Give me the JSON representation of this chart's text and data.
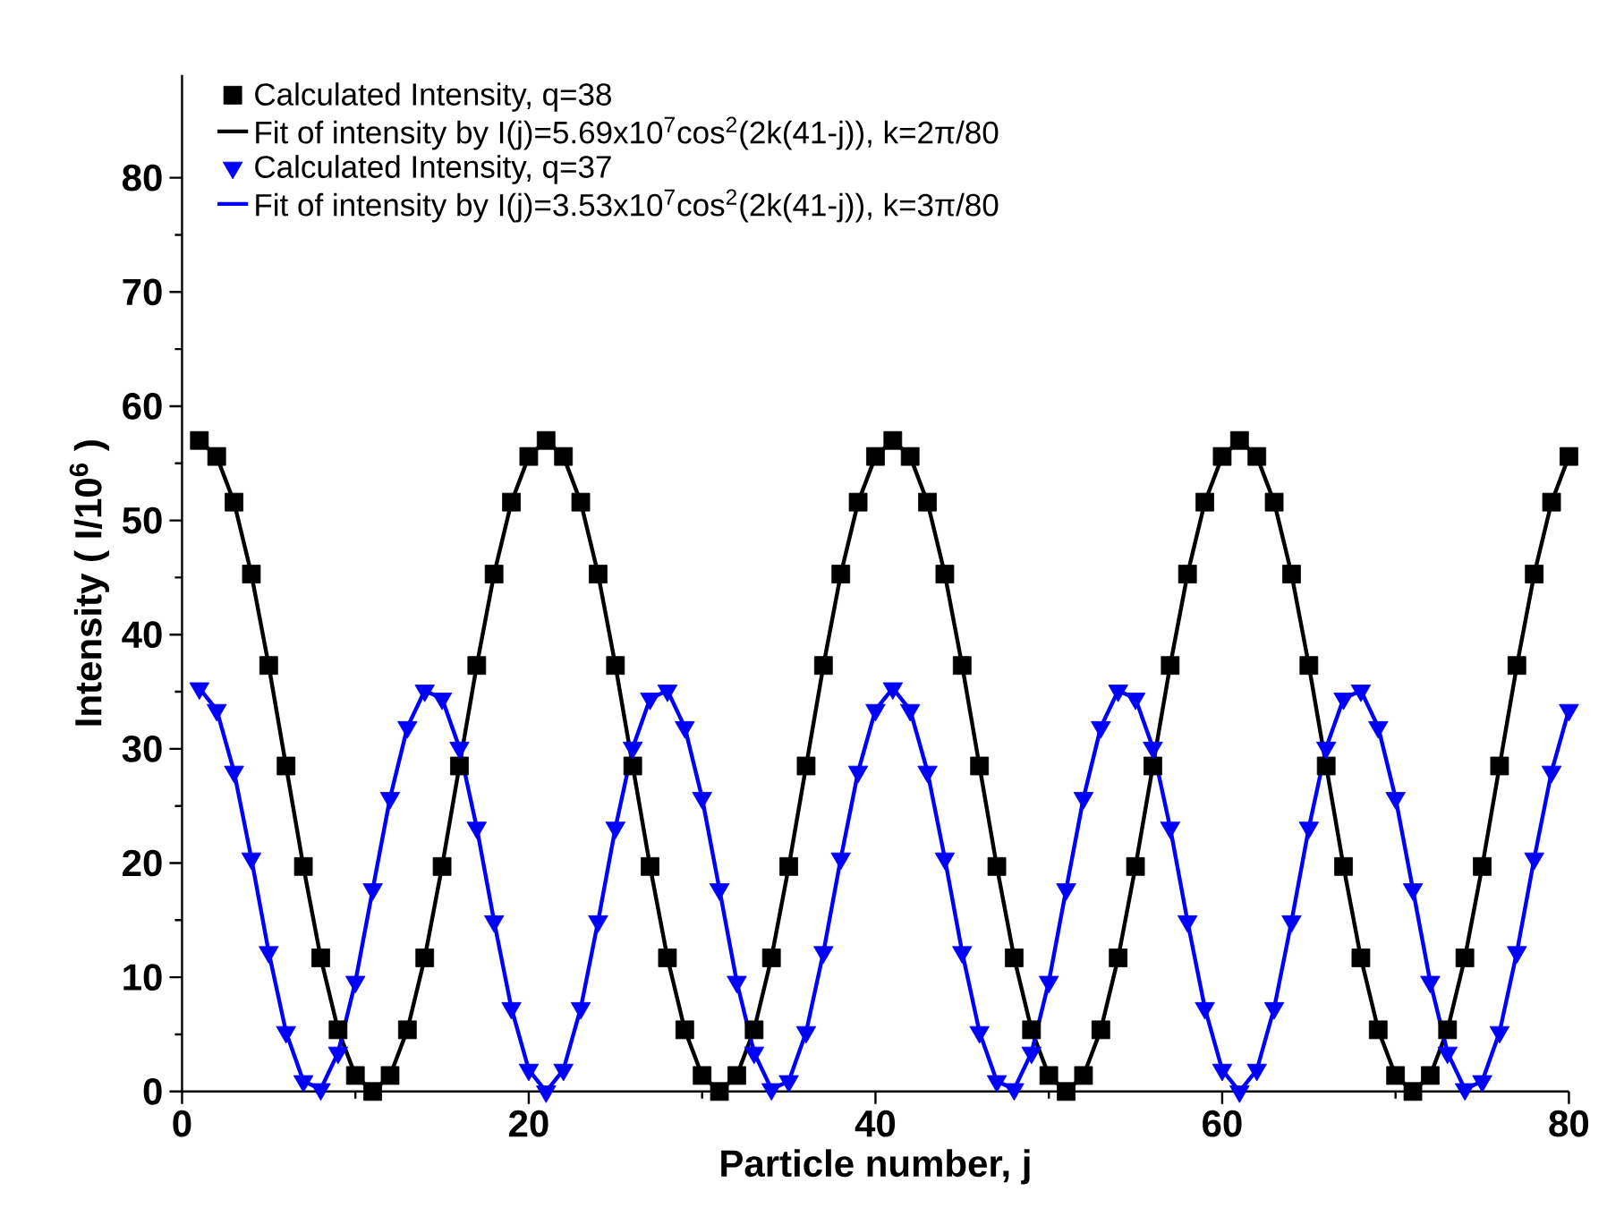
{
  "chart_data": {
    "type": "line",
    "xlabel": "Particle number, j",
    "ylabel": "Intensity ( I/10$^{6}$ )",
    "x": [
      1,
      2,
      3,
      4,
      5,
      6,
      7,
      8,
      9,
      10,
      11,
      12,
      13,
      14,
      15,
      16,
      17,
      18,
      19,
      20,
      21,
      22,
      23,
      24,
      25,
      26,
      27,
      28,
      29,
      30,
      31,
      32,
      33,
      34,
      35,
      36,
      37,
      38,
      39,
      40,
      41,
      42,
      43,
      44,
      45,
      46,
      47,
      48,
      49,
      50,
      51,
      52,
      53,
      54,
      55,
      56,
      57,
      58,
      59,
      60,
      61,
      62,
      63,
      64,
      65,
      66,
      67,
      68,
      69,
      70,
      71,
      72,
      73,
      74,
      75,
      76,
      77,
      78,
      79,
      80
    ],
    "xlim": [
      0,
      80
    ],
    "xticks": [
      0,
      20,
      40,
      60,
      80
    ],
    "ylim": [
      0,
      89
    ],
    "yticks": [
      0,
      10,
      20,
      30,
      40,
      50,
      60,
      70,
      80
    ],
    "legend": "top left",
    "grid": false,
    "series": [
      {
        "type": "scatter",
        "marker": "square",
        "name": "Calculated Intensity, q=38",
        "color": "#000000",
        "values": [
          57,
          55.6,
          51.6,
          45.3,
          37.3,
          28.5,
          19.7,
          11.7,
          5.4,
          1.4,
          0,
          1.4,
          5.4,
          11.7,
          19.7,
          28.5,
          37.3,
          45.3,
          51.6,
          55.6,
          57,
          55.6,
          51.6,
          45.3,
          37.3,
          28.5,
          19.7,
          11.7,
          5.4,
          1.4,
          0,
          1.4,
          5.4,
          11.7,
          19.7,
          28.5,
          37.3,
          45.3,
          51.6,
          55.6,
          57,
          55.6,
          51.6,
          45.3,
          37.3,
          28.5,
          19.7,
          11.7,
          5.4,
          1.4,
          0,
          1.4,
          5.4,
          11.7,
          19.7,
          28.5,
          37.3,
          45.3,
          51.6,
          55.6,
          57,
          55.6,
          51.6,
          45.3,
          37.3,
          28.5,
          19.7,
          11.7,
          5.4,
          1.4,
          0,
          1.4,
          5.4,
          11.7,
          19.7,
          28.5,
          37.3,
          45.3,
          51.6,
          55.6
        ]
      },
      {
        "type": "line",
        "marker": "none",
        "line_style": "solid",
        "name": "Fit of intensity by I(j)=5.69x10$^{7}$cos$^{2}$(2k(41-j)), k=2π/80",
        "color": "#000000",
        "values": [
          57,
          55.6,
          51.6,
          45.3,
          37.3,
          28.5,
          19.7,
          11.7,
          5.4,
          1.4,
          0,
          1.4,
          5.4,
          11.7,
          19.7,
          28.5,
          37.3,
          45.3,
          51.6,
          55.6,
          57,
          55.6,
          51.6,
          45.3,
          37.3,
          28.5,
          19.7,
          11.7,
          5.4,
          1.4,
          0,
          1.4,
          5.4,
          11.7,
          19.7,
          28.5,
          37.3,
          45.3,
          51.6,
          55.6,
          57,
          55.6,
          51.6,
          45.3,
          37.3,
          28.5,
          19.7,
          11.7,
          5.4,
          1.4,
          0,
          1.4,
          5.4,
          11.7,
          19.7,
          28.5,
          37.3,
          45.3,
          51.6,
          55.6,
          57,
          55.6,
          51.6,
          45.3,
          37.3,
          28.5,
          19.7,
          11.7,
          5.4,
          1.4,
          0,
          1.4,
          5.4,
          11.7,
          19.7,
          28.5,
          37.3,
          45.3,
          51.6,
          55.6
        ]
      },
      {
        "type": "scatter",
        "marker": "triangle",
        "name": "Calculated Intensity, q=37",
        "color": "#0000ff",
        "values": [
          35.3,
          33.4,
          28.0,
          20.4,
          12.2,
          5.2,
          0.9,
          0.2,
          3.4,
          9.6,
          17.7,
          25.7,
          31.9,
          35.1,
          34.4,
          30.1,
          23.1,
          14.9,
          7.3,
          1.9,
          0,
          1.9,
          7.3,
          14.9,
          23.1,
          30.1,
          34.4,
          35.1,
          31.9,
          25.7,
          17.7,
          9.6,
          3.4,
          0.2,
          0.9,
          5.2,
          12.2,
          20.4,
          28.0,
          33.4,
          35.3,
          33.4,
          28.0,
          20.4,
          12.2,
          5.2,
          0.9,
          0.2,
          3.4,
          9.6,
          17.7,
          25.7,
          31.9,
          35.1,
          34.4,
          30.1,
          23.1,
          14.9,
          7.3,
          1.9,
          0,
          1.9,
          7.3,
          14.9,
          23.1,
          30.1,
          34.4,
          35.1,
          31.9,
          25.7,
          17.7,
          9.6,
          3.4,
          0.2,
          0.9,
          5.2,
          12.2,
          20.4,
          28.0,
          33.4
        ]
      },
      {
        "type": "line",
        "marker": "none",
        "line_style": "solid",
        "name": "Fit of intensity by I(j)=3.53x10$^{7}$cos$^{2}$(2k(41-j)), k=3π/80",
        "color": "#0000ff",
        "values": [
          35.3,
          33.4,
          28.0,
          20.4,
          12.2,
          5.2,
          0.9,
          0.2,
          3.4,
          9.6,
          17.7,
          25.7,
          31.9,
          35.1,
          34.4,
          30.1,
          23.1,
          14.9,
          7.3,
          1.9,
          0,
          1.9,
          7.3,
          14.9,
          23.1,
          30.1,
          34.4,
          35.1,
          31.9,
          25.7,
          17.7,
          9.6,
          3.4,
          0.2,
          0.9,
          5.2,
          12.2,
          20.4,
          28.0,
          33.4,
          35.3,
          33.4,
          28.0,
          20.4,
          12.2,
          5.2,
          0.9,
          0.2,
          3.4,
          9.6,
          17.7,
          25.7,
          31.9,
          35.1,
          34.4,
          30.1,
          23.1,
          14.9,
          7.3,
          1.9,
          0,
          1.9,
          7.3,
          14.9,
          23.1,
          30.1,
          34.4,
          35.1,
          31.9,
          25.7,
          17.7,
          9.6,
          3.4,
          0.2,
          0.9,
          5.2,
          12.2,
          20.4,
          28.0,
          33.4
        ]
      }
    ]
  }
}
